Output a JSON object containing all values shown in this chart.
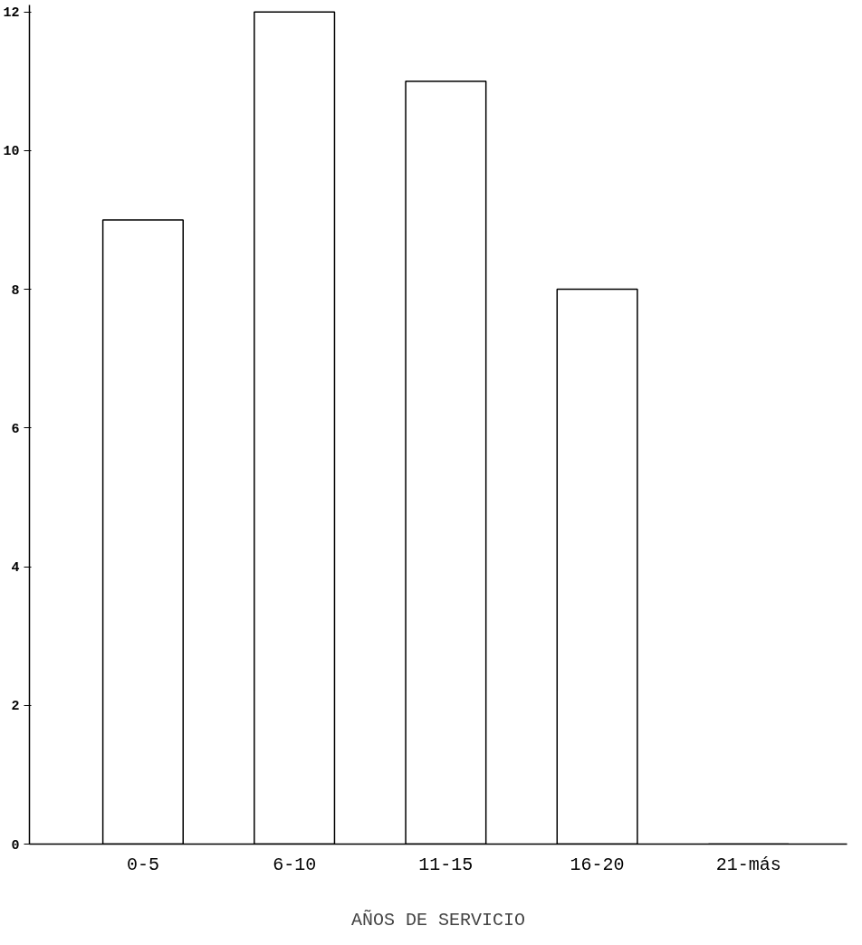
{
  "chart_data": {
    "type": "bar",
    "xlabel": "AÑOS DE SERVICIO",
    "categories": [
      "0-5",
      "6-10",
      "11-15",
      "16-20",
      "21-más"
    ],
    "values": [
      9,
      12,
      11,
      8,
      0
    ],
    "color": "#ffffff",
    "ylim": [
      0,
      12.1
    ],
    "yticks": [
      0,
      2,
      4,
      6,
      8,
      10,
      12
    ],
    "grid": false
  }
}
